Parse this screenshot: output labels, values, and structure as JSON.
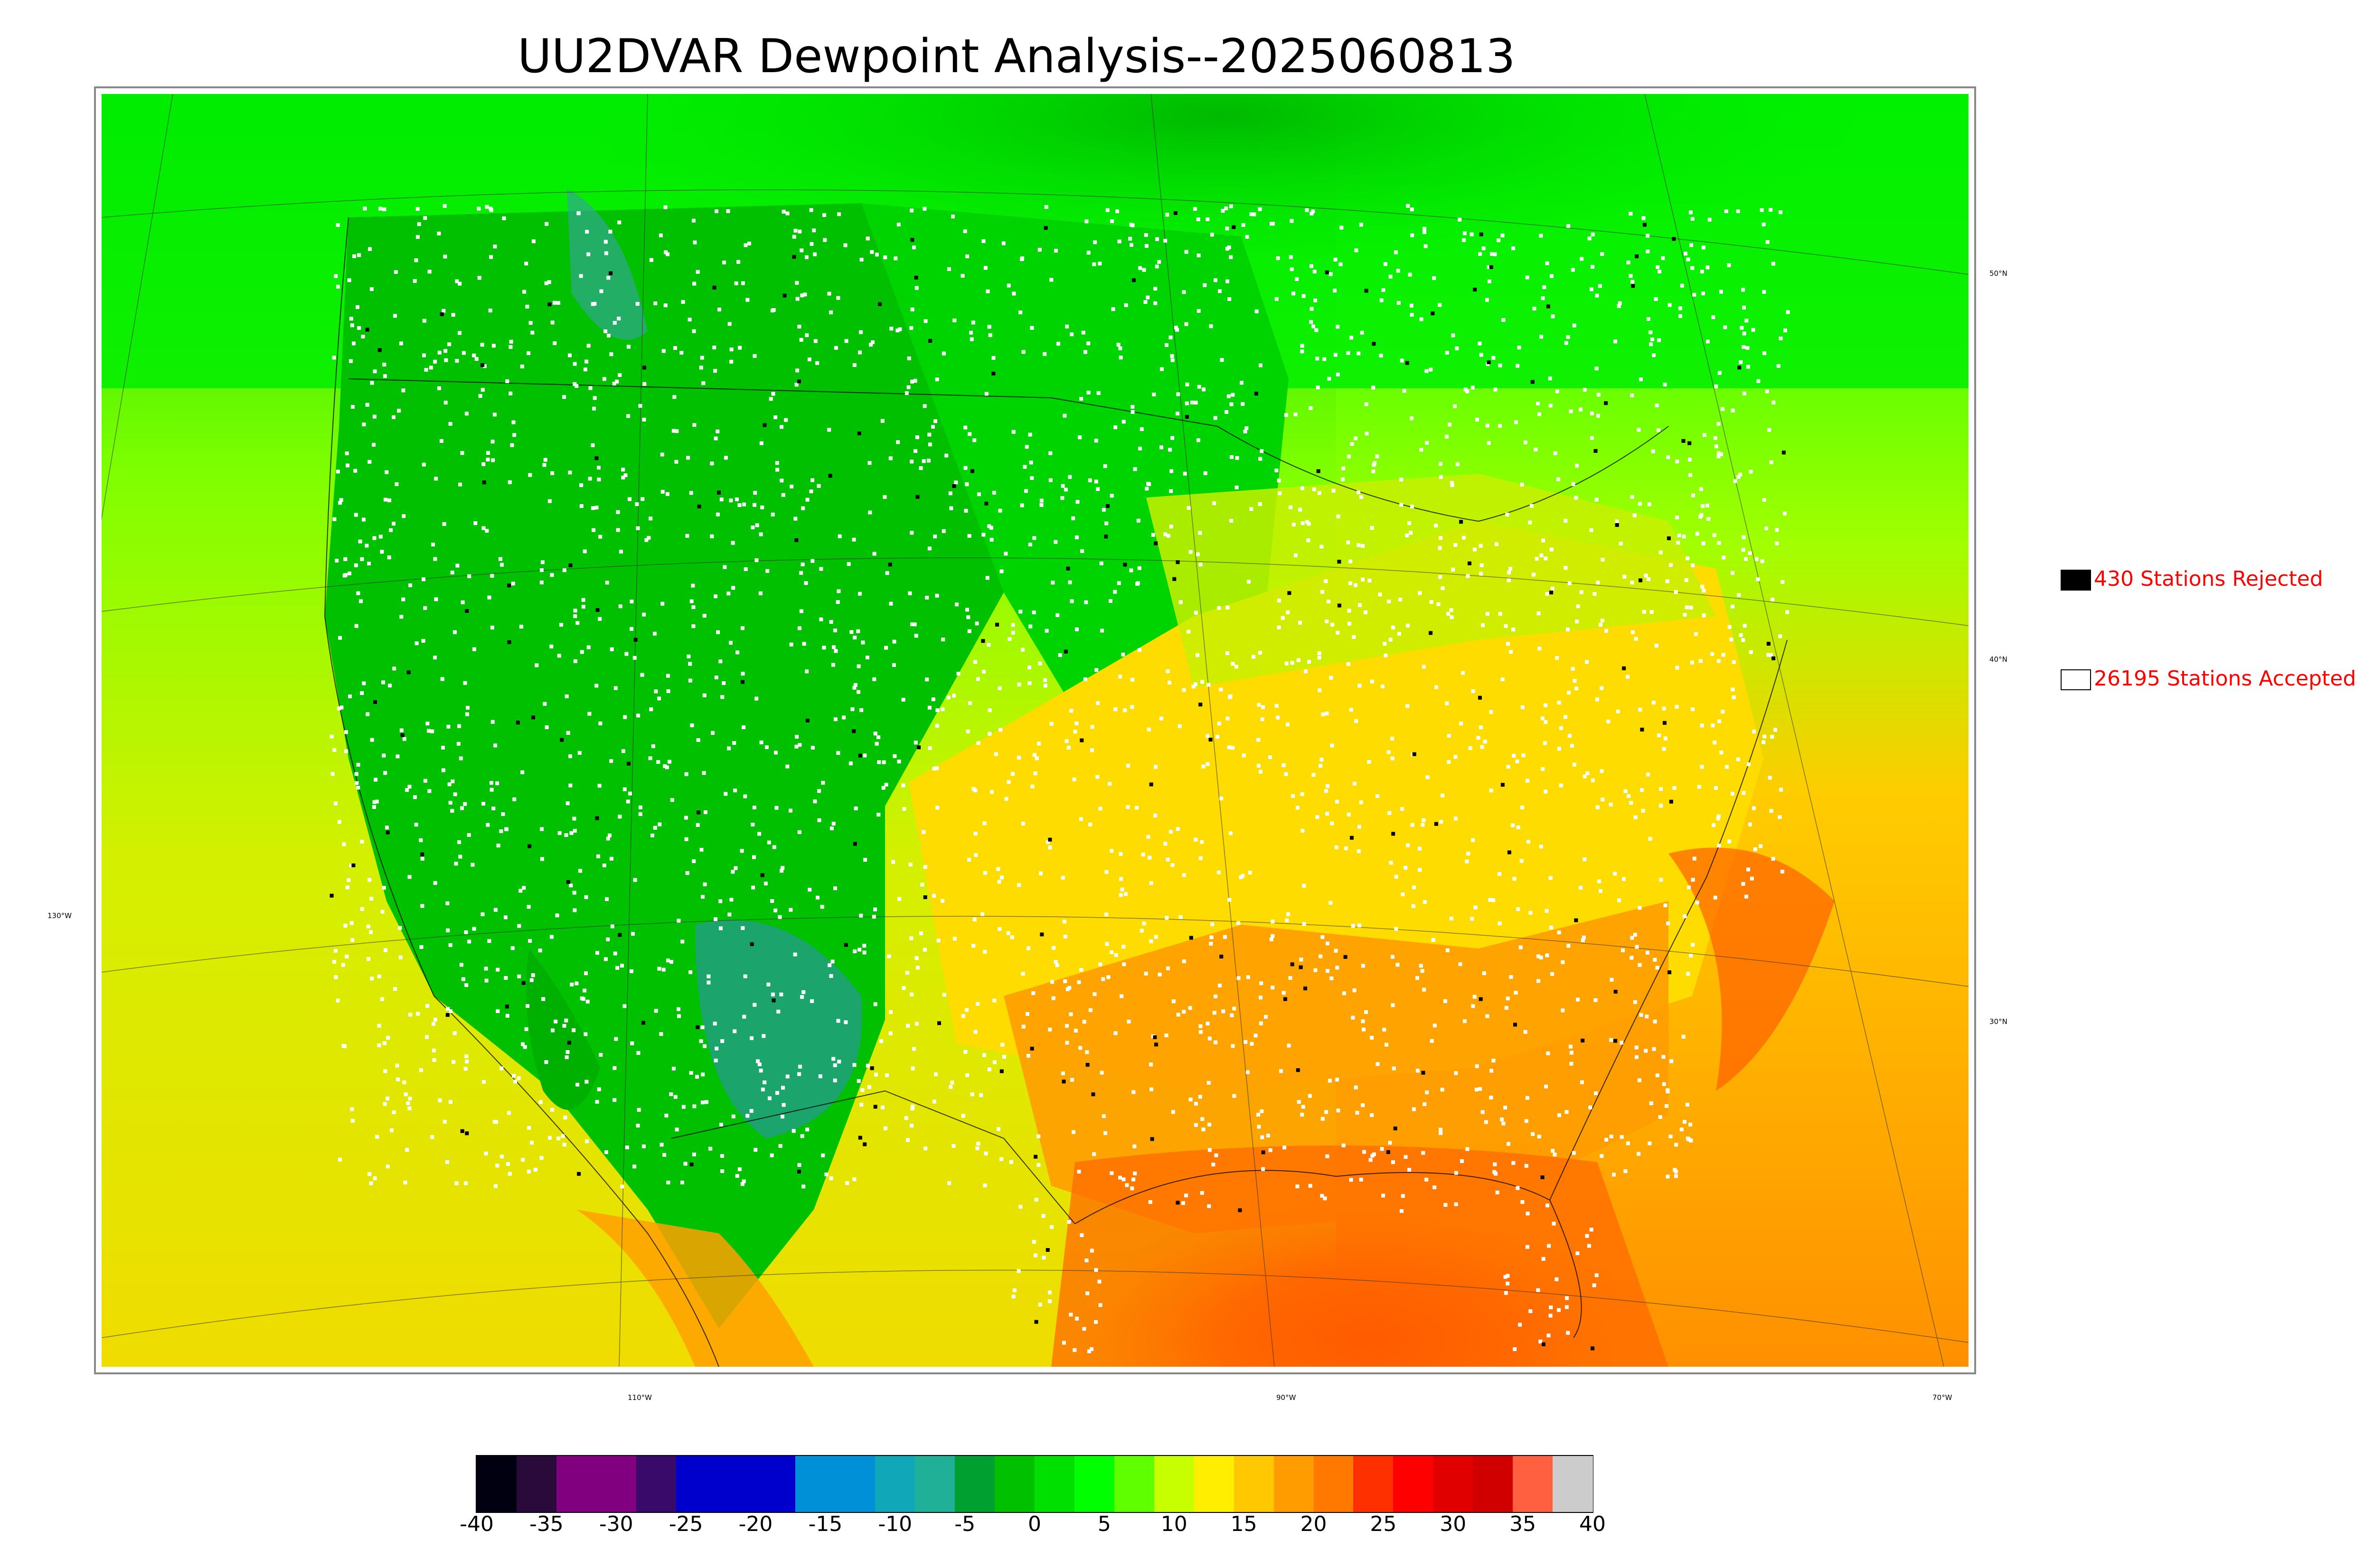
{
  "title": "UU2DVAR Dewpoint Analysis--2025060813",
  "map": {
    "lat_labels": [
      "50°N",
      "40°N",
      "30°N"
    ],
    "lon_labels": [
      "130°W",
      "110°W",
      "90°W",
      "70°W"
    ]
  },
  "legend": {
    "rejected_label": "430 Stations Rejected",
    "accepted_label": "26195 Stations Accepted",
    "rejected_color": "#000000",
    "accepted_color": "#ffffff",
    "text_color": "#ff0000"
  },
  "colorbar": {
    "min": -40,
    "max": 40,
    "ticks": [
      "-40",
      "-35",
      "-30",
      "-25",
      "-20",
      "-15",
      "-10",
      "-5",
      "0",
      "5",
      "10",
      "15",
      "20",
      "25",
      "30",
      "35",
      "40"
    ],
    "colors": [
      "#000010",
      "#2a0a3a",
      "#800080",
      "#800080",
      "#3a0a6a",
      "#0000cc",
      "#0000cc",
      "#0000cc",
      "#0090d8",
      "#0090d8",
      "#10a8b8",
      "#20b098",
      "#00a030",
      "#00c000",
      "#00e000",
      "#00ff00",
      "#60ff00",
      "#c8ff00",
      "#ffee00",
      "#ffc800",
      "#ff9c00",
      "#ff7800",
      "#ff3000",
      "#ff0000",
      "#e00000",
      "#d00000",
      "#ff6040",
      "#cccccc"
    ]
  }
}
